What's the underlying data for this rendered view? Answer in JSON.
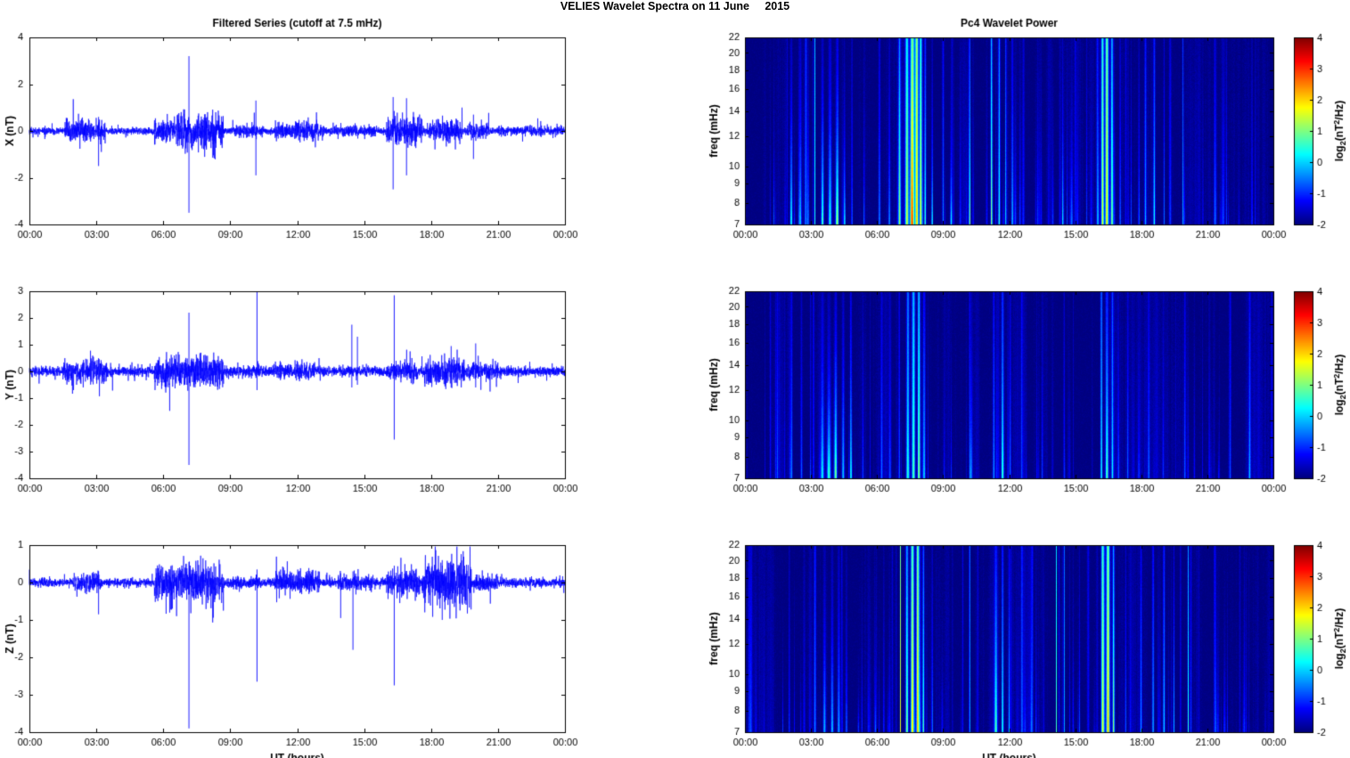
{
  "figure": {
    "title": "VELIES Wavelet Spectra on 11 June     2015",
    "xlabel": "UT (hours)",
    "xtick_labels": [
      "00:00",
      "03:00",
      "06:00",
      "09:00",
      "12:00",
      "15:00",
      "18:00",
      "21:00",
      "00:00"
    ],
    "series_color": "#0000FF",
    "axis_color": "#000000",
    "background": "#FFFFFF"
  },
  "chart_data": [
    {
      "type": "line",
      "panel": "x-timeseries",
      "title": "Filtered Series (cutoff at 7.5 mHz)",
      "ylabel": "X (nT)",
      "ylim": [
        -4,
        4
      ],
      "yticks": [
        -4,
        -2,
        0,
        2,
        4
      ],
      "xlim_hours": [
        0,
        24
      ],
      "seed": 11,
      "noise_base": 0.07,
      "spikiness": 0.02,
      "bursts": [
        {
          "s": 1.6,
          "e": 3.4,
          "a": 0.22
        },
        {
          "s": 5.6,
          "e": 6.6,
          "a": 0.24
        },
        {
          "s": 6.6,
          "e": 8.7,
          "a": 0.38
        },
        {
          "s": 9.0,
          "e": 10.5,
          "a": 0.12
        },
        {
          "s": 11.0,
          "e": 13.2,
          "a": 0.18
        },
        {
          "s": 13.5,
          "e": 15.6,
          "a": 0.12
        },
        {
          "s": 16.0,
          "e": 17.6,
          "a": 0.3
        },
        {
          "s": 17.9,
          "e": 19.4,
          "a": 0.22
        },
        {
          "s": 19.6,
          "e": 20.6,
          "a": 0.15
        },
        {
          "s": 21.0,
          "e": 24.0,
          "a": 0.09
        }
      ],
      "spikes": [
        {
          "t": 3.1,
          "max": 0.6,
          "min": -1.5
        },
        {
          "t": 7.15,
          "max": 3.2,
          "min": -3.5
        },
        {
          "t": 10.15,
          "max": 1.3,
          "min": -1.9
        },
        {
          "t": 16.3,
          "max": 1.45,
          "min": -2.5
        },
        {
          "t": 16.9,
          "max": 1.4,
          "min": -1.9
        },
        {
          "t": 19.9,
          "max": 0.7,
          "min": -1.2
        }
      ]
    },
    {
      "type": "heatmap",
      "panel": "x-spectrogram",
      "title": "Pc4 Wavelet Power",
      "ylabel": "freq (mHz)",
      "yscale": "log",
      "ylim": [
        7,
        22
      ],
      "yticks": [
        7,
        8,
        9,
        10,
        12,
        14,
        16,
        18,
        20,
        22
      ],
      "xlim_hours": [
        0,
        24
      ],
      "seed": 21,
      "background_level": -2,
      "colorbar": {
        "lim": [
          -2,
          4
        ],
        "ticks": [
          4,
          3,
          2,
          1,
          0,
          -1,
          -2
        ],
        "label": "log2(nT^2/Hz)",
        "label_segments": [
          {
            "text": "log"
          },
          {
            "text": "2",
            "style": "sub"
          },
          {
            "text": "(nT"
          },
          {
            "text": "2",
            "style": "sup"
          },
          {
            "text": "/Hz)"
          }
        ]
      },
      "minor_streaks": {
        "count": 85,
        "vmin": 0.4,
        "vmax": 1.3
      },
      "events": [
        {
          "t": 1.3,
          "w": 0.02,
          "v": 1.2,
          "f": 0.4
        },
        {
          "t": 2.1,
          "w": 0.03,
          "v": 1.6,
          "f": 0.6
        },
        {
          "t": 2.5,
          "w": 0.04,
          "v": 2.0,
          "f": 0.6
        },
        {
          "t": 2.85,
          "w": 0.03,
          "v": 1.7,
          "f": 0.5
        },
        {
          "t": 3.15,
          "w": 0.014,
          "v": 3.5,
          "f": 3.5
        },
        {
          "t": 3.5,
          "w": 0.04,
          "v": 2.2,
          "f": 0.5
        },
        {
          "t": 3.85,
          "w": 0.05,
          "v": 2.4,
          "f": 0.6
        },
        {
          "t": 4.15,
          "w": 0.04,
          "v": 2.0,
          "f": 0.5
        },
        {
          "t": 4.5,
          "w": 0.03,
          "v": 1.8,
          "f": 0.45
        },
        {
          "t": 4.85,
          "w": 0.02,
          "v": 1.5,
          "f": 0.7
        },
        {
          "t": 5.4,
          "w": 0.02,
          "v": 1.2,
          "f": 0.4
        },
        {
          "t": 6.1,
          "w": 0.03,
          "v": 1.6,
          "f": 0.9
        },
        {
          "t": 6.55,
          "w": 0.03,
          "v": 1.5,
          "f": 0.5
        },
        {
          "t": 7.0,
          "w": 0.025,
          "v": 2.4,
          "f": 1.2
        },
        {
          "t": 7.35,
          "w": 0.05,
          "v": 3.2,
          "f": 2.2
        },
        {
          "t": 7.6,
          "w": 0.06,
          "v": 3.9,
          "f": 3.0
        },
        {
          "t": 7.8,
          "w": 0.05,
          "v": 4.0,
          "f": 4.0
        },
        {
          "t": 7.98,
          "w": 0.04,
          "v": 3.5,
          "f": 2.5
        },
        {
          "t": 8.18,
          "w": 0.03,
          "v": 2.6,
          "f": 1.0
        },
        {
          "t": 8.5,
          "w": 0.02,
          "v": 1.6,
          "f": 0.6
        },
        {
          "t": 9.35,
          "w": 0.02,
          "v": 1.1,
          "f": 0.4
        },
        {
          "t": 10.2,
          "w": 0.014,
          "v": 2.1,
          "f": 2.5
        },
        {
          "t": 11.2,
          "w": 0.03,
          "v": 2.0,
          "f": 1.4
        },
        {
          "t": 11.55,
          "w": 0.03,
          "v": 2.4,
          "f": 1.8
        },
        {
          "t": 11.85,
          "w": 0.02,
          "v": 2.2,
          "f": 1.4
        },
        {
          "t": 12.15,
          "w": 0.03,
          "v": 1.8,
          "f": 0.8
        },
        {
          "t": 12.5,
          "w": 0.02,
          "v": 1.4,
          "f": 0.5
        },
        {
          "t": 13.3,
          "w": 0.02,
          "v": 1.0,
          "f": 0.6
        },
        {
          "t": 14.45,
          "w": 0.02,
          "v": 1.2,
          "f": 0.5
        },
        {
          "t": 15.1,
          "w": 0.02,
          "v": 1.0,
          "f": 0.4
        },
        {
          "t": 16.25,
          "w": 0.04,
          "v": 3.3,
          "f": 2.6
        },
        {
          "t": 16.45,
          "w": 0.05,
          "v": 3.8,
          "f": 3.2
        },
        {
          "t": 16.68,
          "w": 0.04,
          "v": 3.0,
          "f": 1.8
        },
        {
          "t": 17.05,
          "w": 0.02,
          "v": 1.8,
          "f": 0.8
        },
        {
          "t": 18.2,
          "w": 0.03,
          "v": 1.6,
          "f": 1.2
        },
        {
          "t": 18.6,
          "w": 0.03,
          "v": 1.8,
          "f": 1.4
        },
        {
          "t": 19.05,
          "w": 0.02,
          "v": 1.4,
          "f": 0.8
        },
        {
          "t": 19.9,
          "w": 0.018,
          "v": 1.7,
          "f": 1.8
        },
        {
          "t": 21.35,
          "w": 0.025,
          "v": 1.3,
          "f": 1.0
        },
        {
          "t": 23.05,
          "w": 0.02,
          "v": 1.1,
          "f": 0.6
        }
      ]
    },
    {
      "type": "line",
      "panel": "y-timeseries",
      "ylabel": "Y (nT)",
      "ylim": [
        -4,
        3
      ],
      "yticks": [
        -4,
        -3,
        -2,
        -1,
        0,
        1,
        2,
        3
      ],
      "xlim_hours": [
        0,
        24
      ],
      "seed": 12,
      "noise_base": 0.09,
      "spikiness": 0.018,
      "bursts": [
        {
          "s": 1.5,
          "e": 3.5,
          "a": 0.2
        },
        {
          "s": 5.6,
          "e": 8.7,
          "a": 0.28
        },
        {
          "s": 9.0,
          "e": 10.5,
          "a": 0.11
        },
        {
          "s": 11.0,
          "e": 12.8,
          "a": 0.16
        },
        {
          "s": 13.8,
          "e": 15.2,
          "a": 0.1
        },
        {
          "s": 16.0,
          "e": 17.4,
          "a": 0.18
        },
        {
          "s": 17.7,
          "e": 19.5,
          "a": 0.26
        },
        {
          "s": 19.6,
          "e": 21.0,
          "a": 0.16
        },
        {
          "s": 21.5,
          "e": 24.0,
          "a": 0.08
        }
      ],
      "spikes": [
        {
          "t": 7.15,
          "max": 2.2,
          "min": -3.5
        },
        {
          "t": 10.2,
          "max": 3.0,
          "min": -0.7
        },
        {
          "t": 14.45,
          "max": 1.75,
          "min": -0.6
        },
        {
          "t": 14.7,
          "max": 1.3,
          "min": -0.5
        },
        {
          "t": 16.35,
          "max": 2.85,
          "min": -2.55
        },
        {
          "t": 18.9,
          "max": 0.95,
          "min": -0.6
        },
        {
          "t": 20.0,
          "max": 1.05,
          "min": -0.6
        }
      ]
    },
    {
      "type": "heatmap",
      "panel": "y-spectrogram",
      "ylabel": "freq (mHz)",
      "yscale": "log",
      "ylim": [
        7,
        22
      ],
      "yticks": [
        7,
        8,
        9,
        10,
        12,
        14,
        16,
        18,
        20,
        22
      ],
      "xlim_hours": [
        0,
        24
      ],
      "seed": 22,
      "background_level": -2,
      "colorbar": {
        "lim": [
          -2,
          4
        ],
        "ticks": [
          4,
          3,
          2,
          1,
          0,
          -1,
          -2
        ],
        "label": "log2(nT^2/Hz)",
        "label_segments": [
          {
            "text": "log"
          },
          {
            "text": "2",
            "style": "sub"
          },
          {
            "text": "(nT"
          },
          {
            "text": "2",
            "style": "sup"
          },
          {
            "text": "/Hz)"
          }
        ]
      },
      "minor_streaks": {
        "count": 70,
        "vmin": 0.3,
        "vmax": 1.0
      },
      "events": [
        {
          "t": 1.45,
          "w": 0.02,
          "v": 1.0,
          "f": 0.8
        },
        {
          "t": 2.1,
          "w": 0.03,
          "v": 1.4,
          "f": 1.2
        },
        {
          "t": 2.55,
          "w": 0.03,
          "v": 1.2,
          "f": 0.8
        },
        {
          "t": 3.1,
          "w": 0.016,
          "v": 1.7,
          "f": 2.0
        },
        {
          "t": 3.5,
          "w": 0.05,
          "v": 2.0,
          "f": 0.5
        },
        {
          "t": 3.8,
          "w": 0.06,
          "v": 2.6,
          "f": 0.45
        },
        {
          "t": 4.1,
          "w": 0.05,
          "v": 2.4,
          "f": 0.5
        },
        {
          "t": 4.45,
          "w": 0.04,
          "v": 2.0,
          "f": 0.6
        },
        {
          "t": 4.8,
          "w": 0.03,
          "v": 1.4,
          "f": 0.9
        },
        {
          "t": 5.35,
          "w": 0.02,
          "v": 1.0,
          "f": 0.5
        },
        {
          "t": 6.2,
          "w": 0.03,
          "v": 1.2,
          "f": 0.8
        },
        {
          "t": 7.0,
          "w": 0.02,
          "v": 1.6,
          "f": 1.2
        },
        {
          "t": 7.4,
          "w": 0.04,
          "v": 2.2,
          "f": 2.2
        },
        {
          "t": 7.65,
          "w": 0.05,
          "v": 2.8,
          "f": 2.4
        },
        {
          "t": 7.9,
          "w": 0.04,
          "v": 2.4,
          "f": 2.0
        },
        {
          "t": 8.15,
          "w": 0.03,
          "v": 1.8,
          "f": 1.0
        },
        {
          "t": 10.2,
          "w": 0.014,
          "v": 1.8,
          "f": 2.4
        },
        {
          "t": 11.3,
          "w": 0.03,
          "v": 1.6,
          "f": 1.2
        },
        {
          "t": 11.7,
          "w": 0.03,
          "v": 1.8,
          "f": 1.5
        },
        {
          "t": 12.05,
          "w": 0.02,
          "v": 1.4,
          "f": 0.8
        },
        {
          "t": 13.5,
          "w": 0.02,
          "v": 0.9,
          "f": 0.5
        },
        {
          "t": 14.5,
          "w": 0.02,
          "v": 1.1,
          "f": 1.2
        },
        {
          "t": 16.2,
          "w": 0.03,
          "v": 2.2,
          "f": 2.0
        },
        {
          "t": 16.45,
          "w": 0.045,
          "v": 2.6,
          "f": 0.9
        },
        {
          "t": 16.7,
          "w": 0.03,
          "v": 2.0,
          "f": 1.4
        },
        {
          "t": 17.4,
          "w": 0.02,
          "v": 1.2,
          "f": 0.8
        },
        {
          "t": 18.35,
          "w": 0.025,
          "v": 1.2,
          "f": 0.9
        },
        {
          "t": 19.0,
          "w": 0.02,
          "v": 1.0,
          "f": 0.6
        },
        {
          "t": 20.0,
          "w": 0.02,
          "v": 1.2,
          "f": 1.0
        },
        {
          "t": 22.95,
          "w": 0.03,
          "v": 1.4,
          "f": 1.2
        }
      ]
    },
    {
      "type": "line",
      "panel": "z-timeseries",
      "ylabel": "Z (nT)",
      "ylim": [
        -4,
        1
      ],
      "yticks": [
        -4,
        -3,
        -2,
        -1,
        0,
        1
      ],
      "xlim_hours": [
        0,
        24
      ],
      "seed": 13,
      "noise_base": 0.055,
      "spikiness": 0.02,
      "show_xlabel": true,
      "bursts": [
        {
          "s": 2.0,
          "e": 3.2,
          "a": 0.12
        },
        {
          "s": 5.6,
          "e": 8.7,
          "a": 0.25
        },
        {
          "s": 9.0,
          "e": 10.4,
          "a": 0.08
        },
        {
          "s": 11.0,
          "e": 13.0,
          "a": 0.15
        },
        {
          "s": 13.8,
          "e": 15.4,
          "a": 0.1
        },
        {
          "s": 16.0,
          "e": 17.5,
          "a": 0.2
        },
        {
          "s": 17.6,
          "e": 19.8,
          "a": 0.3
        },
        {
          "s": 20.0,
          "e": 21.0,
          "a": 0.12
        },
        {
          "s": 21.5,
          "e": 24.0,
          "a": 0.06
        }
      ],
      "spikes": [
        {
          "t": 3.1,
          "max": 0.3,
          "min": -0.85
        },
        {
          "t": 7.15,
          "max": 0.55,
          "min": -3.9
        },
        {
          "t": 10.2,
          "max": 0.35,
          "min": -2.65
        },
        {
          "t": 13.95,
          "max": 0.25,
          "min": -0.95
        },
        {
          "t": 14.5,
          "max": 0.3,
          "min": -1.8
        },
        {
          "t": 16.35,
          "max": 0.45,
          "min": -2.75
        },
        {
          "t": 18.5,
          "max": 0.6,
          "min": -1.0
        }
      ]
    },
    {
      "type": "heatmap",
      "panel": "z-spectrogram",
      "ylabel": "freq (mHz)",
      "yscale": "log",
      "ylim": [
        7,
        22
      ],
      "yticks": [
        7,
        8,
        9,
        10,
        12,
        14,
        16,
        18,
        20,
        22
      ],
      "xlim_hours": [
        0,
        24
      ],
      "seed": 23,
      "background_level": -2,
      "show_xlabel": true,
      "colorbar": {
        "lim": [
          -2,
          4
        ],
        "ticks": [
          4,
          3,
          2,
          1,
          0,
          -1,
          -2
        ],
        "label": "log2(nT^2/Hz)",
        "label_segments": [
          {
            "text": "log"
          },
          {
            "text": "2",
            "style": "sub"
          },
          {
            "text": "(nT"
          },
          {
            "text": "2",
            "style": "sup"
          },
          {
            "text": "/Hz)"
          }
        ]
      },
      "minor_streaks": {
        "count": 80,
        "vmin": 0.35,
        "vmax": 1.1
      },
      "events": [
        {
          "t": 2.0,
          "w": 0.02,
          "v": 1.2,
          "f": 0.8
        },
        {
          "t": 3.15,
          "w": 0.018,
          "v": 1.8,
          "f": 1.6
        },
        {
          "t": 3.6,
          "w": 0.04,
          "v": 1.8,
          "f": 0.5
        },
        {
          "t": 3.95,
          "w": 0.04,
          "v": 2.0,
          "f": 0.5
        },
        {
          "t": 4.25,
          "w": 0.04,
          "v": 1.8,
          "f": 0.6
        },
        {
          "t": 4.6,
          "w": 0.03,
          "v": 1.4,
          "f": 0.5
        },
        {
          "t": 5.3,
          "w": 0.02,
          "v": 1.0,
          "f": 0.4
        },
        {
          "t": 6.3,
          "w": 0.02,
          "v": 1.2,
          "f": 0.6
        },
        {
          "t": 7.05,
          "w": 0.013,
          "v": 3.8,
          "f": 4.0
        },
        {
          "t": 7.35,
          "w": 0.04,
          "v": 3.0,
          "f": 1.6
        },
        {
          "t": 7.6,
          "w": 0.05,
          "v": 4.0,
          "f": 2.6
        },
        {
          "t": 7.85,
          "w": 0.05,
          "v": 3.6,
          "f": 3.0
        },
        {
          "t": 8.1,
          "w": 0.03,
          "v": 2.8,
          "f": 1.2
        },
        {
          "t": 8.5,
          "w": 0.02,
          "v": 1.6,
          "f": 0.6
        },
        {
          "t": 10.2,
          "w": 0.014,
          "v": 3.2,
          "f": 3.8
        },
        {
          "t": 11.4,
          "w": 0.04,
          "v": 2.4,
          "f": 0.8
        },
        {
          "t": 11.7,
          "w": 0.03,
          "v": 2.6,
          "f": 1.0
        },
        {
          "t": 12.0,
          "w": 0.02,
          "v": 1.8,
          "f": 0.8
        },
        {
          "t": 13.0,
          "w": 0.02,
          "v": 1.0,
          "f": 0.5
        },
        {
          "t": 14.15,
          "w": 0.013,
          "v": 2.6,
          "f": 3.8
        },
        {
          "t": 14.5,
          "w": 0.013,
          "v": 2.9,
          "f": 3.8
        },
        {
          "t": 15.2,
          "w": 0.02,
          "v": 1.2,
          "f": 0.6
        },
        {
          "t": 16.25,
          "w": 0.04,
          "v": 3.4,
          "f": 2.8
        },
        {
          "t": 16.5,
          "w": 0.05,
          "v": 3.8,
          "f": 3.4
        },
        {
          "t": 16.75,
          "w": 0.03,
          "v": 2.8,
          "f": 1.5
        },
        {
          "t": 17.3,
          "w": 0.02,
          "v": 1.4,
          "f": 0.8
        },
        {
          "t": 18.0,
          "w": 0.03,
          "v": 1.6,
          "f": 1.0
        },
        {
          "t": 18.55,
          "w": 0.03,
          "v": 1.8,
          "f": 1.2
        },
        {
          "t": 19.05,
          "w": 0.03,
          "v": 1.6,
          "f": 1.0
        },
        {
          "t": 19.5,
          "w": 0.02,
          "v": 1.4,
          "f": 0.8
        },
        {
          "t": 20.15,
          "w": 0.018,
          "v": 2.0,
          "f": 2.0
        },
        {
          "t": 21.4,
          "w": 0.02,
          "v": 1.0,
          "f": 0.6
        }
      ]
    }
  ]
}
